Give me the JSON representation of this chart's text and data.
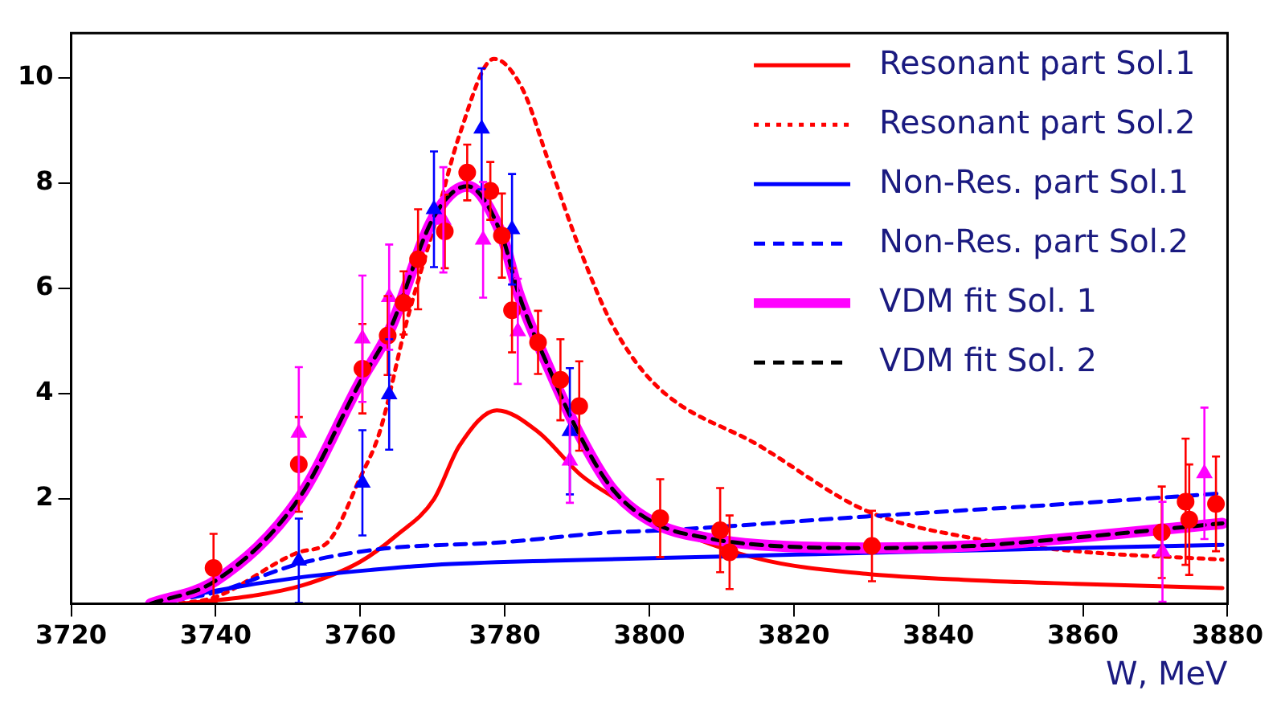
{
  "chart_data": {
    "type": "line",
    "xlabel": "W, MeV",
    "xlim": [
      3720,
      3880
    ],
    "xticks": [
      3720,
      3740,
      3760,
      3780,
      3800,
      3820,
      3840,
      3860,
      3880
    ],
    "ylim": [
      0,
      10.85
    ],
    "yticks": [
      2,
      4,
      6,
      8,
      10
    ],
    "grid": false,
    "legend": "top right",
    "series": [
      {
        "name": "Resonant part Sol.1",
        "type": "line",
        "color": "#ff0000",
        "line_style": "solid",
        "marker": "none",
        "x": [
          3735,
          3745,
          3752,
          3760,
          3765,
          3770.2,
          3773.7,
          3778.9,
          3784.6,
          3790.5,
          3794.9,
          3801.5,
          3815.3,
          3830,
          3844.6,
          3859,
          3879.3
        ],
        "values": [
          0,
          0.15,
          0.35,
          0.8,
          1.3,
          1.99,
          3.0,
          3.68,
          3.27,
          2.45,
          2.04,
          1.53,
          0.85,
          0.57,
          0.45,
          0.38,
          0.3
        ]
      },
      {
        "name": "Resonant part Sol.2",
        "type": "line",
        "color": "#ff0000",
        "line_style": "dotted",
        "marker": "none",
        "x": [
          3735,
          3740,
          3751.5,
          3755.5,
          3760,
          3762.7,
          3766.4,
          3770.2,
          3773.7,
          3778.5,
          3782.4,
          3786.2,
          3790.5,
          3794.9,
          3800.8,
          3815.3,
          3830,
          3844.6,
          3859,
          3879.3
        ],
        "values": [
          0,
          0.13,
          0.98,
          1.17,
          2.4,
          3.27,
          5.35,
          7.17,
          8.9,
          10.36,
          9.8,
          8.35,
          6.7,
          5.3,
          4.17,
          3.0,
          1.77,
          1.25,
          1.0,
          0.84
        ]
      },
      {
        "name": "Non-Res. part Sol.1",
        "type": "line",
        "color": "#0000ff",
        "line_style": "solid",
        "marker": "none",
        "x": [
          3731.4,
          3740,
          3751.5,
          3762,
          3770.2,
          3786.2,
          3810,
          3840,
          3879.3
        ],
        "values": [
          0,
          0.25,
          0.5,
          0.65,
          0.74,
          0.82,
          0.9,
          1.0,
          1.12
        ]
      },
      {
        "name": "Non-Res. part Sol.2",
        "type": "line",
        "color": "#0000ff",
        "line_style": "dashed",
        "marker": "none",
        "x": [
          3731.4,
          3740,
          3751.5,
          3762.7,
          3779.6,
          3794.9,
          3800.8,
          3830,
          3859,
          3879.3
        ],
        "values": [
          0,
          0.22,
          0.76,
          1.04,
          1.17,
          1.36,
          1.39,
          1.66,
          1.91,
          2.1
        ]
      },
      {
        "name": "VDM fit Sol. 1",
        "type": "line",
        "color": "#ff00ff",
        "line_style": "solid",
        "marker": "none",
        "x": [
          3731,
          3740,
          3751.5,
          3760,
          3764,
          3770.2,
          3774.8,
          3779.6,
          3781.9,
          3786.2,
          3790.5,
          3794.9,
          3800.8,
          3808,
          3815.3,
          3830,
          3844.6,
          3859,
          3879.3
        ],
        "values": [
          0,
          0.44,
          2.0,
          4.22,
          5.18,
          7.36,
          7.94,
          7.0,
          5.9,
          4.45,
          3.17,
          2.18,
          1.53,
          1.25,
          1.12,
          1.06,
          1.1,
          1.26,
          1.53
        ]
      },
      {
        "name": "VDM fit Sol. 2",
        "type": "line",
        "color": "#000000",
        "line_style": "dashed",
        "marker": "none",
        "x": [
          3731,
          3740,
          3751.5,
          3760,
          3764,
          3770.2,
          3774.8,
          3779.6,
          3781.9,
          3786.2,
          3790.5,
          3794.9,
          3800.8,
          3808,
          3815.3,
          3830,
          3844.6,
          3859,
          3879.3
        ],
        "values": [
          0,
          0.44,
          2.0,
          4.22,
          5.18,
          7.36,
          7.94,
          7.0,
          5.9,
          4.45,
          3.17,
          2.18,
          1.53,
          1.25,
          1.12,
          1.06,
          1.1,
          1.26,
          1.53
        ]
      },
      {
        "type": "scatter",
        "color": "#ff0000",
        "marker": "circle",
        "x": [
          3739.7,
          3751.5,
          3760.3,
          3763.8,
          3766,
          3768,
          3771.7,
          3774.8,
          3778,
          3779.6,
          3781,
          3784.6,
          3787.7,
          3790.3,
          3801.5,
          3809.8,
          3811.1,
          3830.8,
          3870.9,
          3874.2,
          3874.7,
          3878.4
        ],
        "values": [
          0.68,
          2.65,
          4.47,
          5.1,
          5.72,
          6.55,
          7.08,
          8.2,
          7.85,
          7.0,
          5.58,
          4.97,
          4.26,
          3.76,
          1.63,
          1.4,
          0.98,
          1.1,
          1.36,
          1.94,
          1.6,
          1.9
        ],
        "errors": [
          0.65,
          0.9,
          0.85,
          0.75,
          0.6,
          0.95,
          0.7,
          0.53,
          0.55,
          0.8,
          0.8,
          0.6,
          0.77,
          0.85,
          0.74,
          0.8,
          0.7,
          0.67,
          0.87,
          1.2,
          1.05,
          0.9
        ]
      },
      {
        "type": "scatter",
        "color": "#0000ff",
        "marker": "triangle",
        "x": [
          3751.5,
          3760.3,
          3764,
          3770.2,
          3776.8,
          3781,
          3789
        ],
        "values": [
          0.82,
          2.3,
          3.98,
          7.5,
          9.03,
          7.12,
          3.28
        ],
        "errors": [
          0.8,
          1.0,
          1.05,
          1.1,
          1.15,
          1.05,
          1.2
        ]
      },
      {
        "type": "scatter",
        "color": "#ff00ff",
        "marker": "triangle",
        "x": [
          3751.5,
          3760.3,
          3764,
          3771.5,
          3777,
          3781.8,
          3789,
          3871,
          3876.8
        ],
        "values": [
          3.25,
          5.04,
          5.83,
          7.3,
          6.92,
          5.18,
          2.72,
          0.99,
          2.48
        ],
        "errors": [
          1.25,
          1.2,
          1.0,
          1.0,
          1.1,
          1.0,
          0.8,
          0.95,
          1.25
        ]
      }
    ]
  }
}
